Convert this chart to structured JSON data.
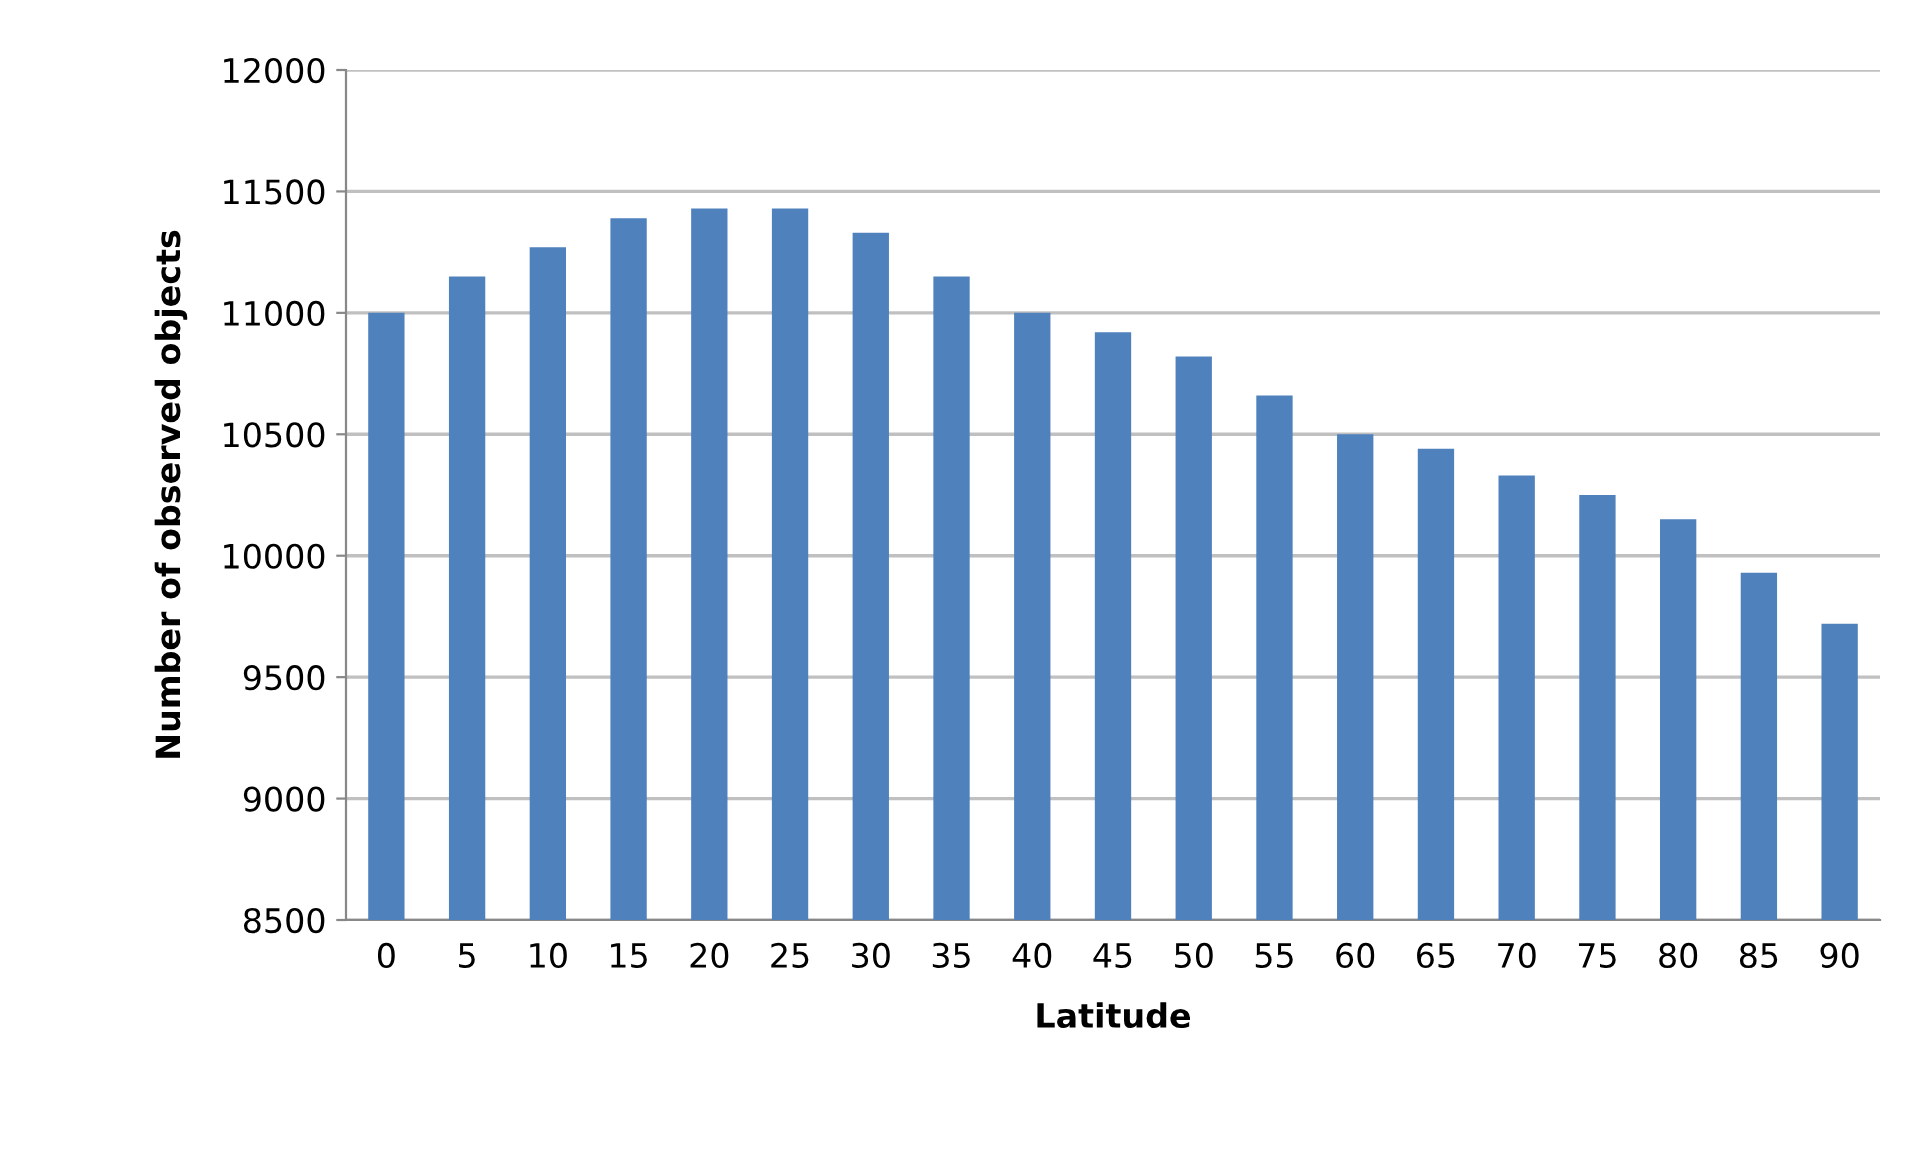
{
  "chart_data": {
    "type": "bar",
    "xlabel": "Latitude",
    "ylabel": "Number of observed objects",
    "categories": [
      "0",
      "5",
      "10",
      "15",
      "20",
      "25",
      "30",
      "35",
      "40",
      "45",
      "50",
      "55",
      "60",
      "65",
      "70",
      "75",
      "80",
      "85",
      "90"
    ],
    "values": [
      11000,
      11150,
      11270,
      11390,
      11430,
      11430,
      11330,
      11150,
      11000,
      10920,
      10820,
      10660,
      10500,
      10440,
      10330,
      10250,
      10150,
      9930,
      9720
    ],
    "color": "#4f81bd",
    "ylim": [
      8500,
      12000
    ],
    "yticks": [
      8500,
      9000,
      9500,
      10000,
      10500,
      11000,
      11500,
      12000
    ],
    "grid": "y"
  }
}
